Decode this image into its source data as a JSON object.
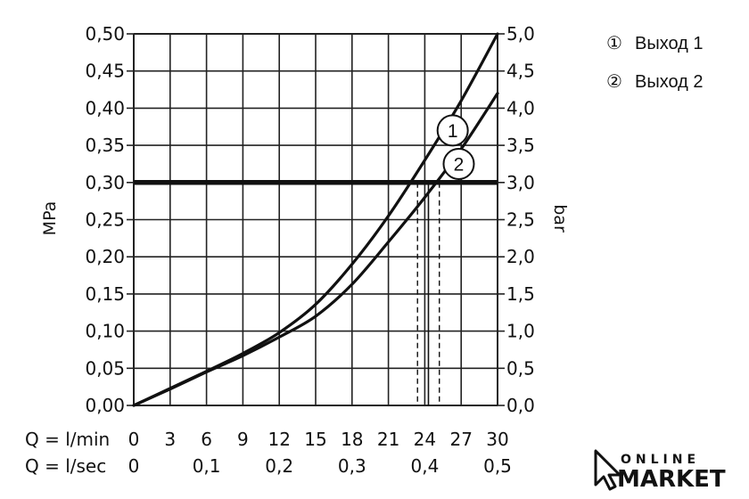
{
  "chart_data": {
    "type": "line",
    "xlabel_rows": [
      {
        "label": "Q = l/min",
        "ticks": [
          {
            "value": 0,
            "label": "0"
          },
          {
            "value": 3,
            "label": "3"
          },
          {
            "value": 6,
            "label": "6"
          },
          {
            "value": 9,
            "label": "9"
          },
          {
            "value": 12,
            "label": "12"
          },
          {
            "value": 15,
            "label": "15"
          },
          {
            "value": 18,
            "label": "18"
          },
          {
            "value": 21,
            "label": "21"
          },
          {
            "value": 24,
            "label": "24"
          },
          {
            "value": 27,
            "label": "27"
          },
          {
            "value": 30,
            "label": "30"
          }
        ]
      },
      {
        "label": "Q = l/sec",
        "ticks": [
          {
            "value": 0,
            "label": "0"
          },
          {
            "value": 6,
            "label": "0,1"
          },
          {
            "value": 12,
            "label": "0,2"
          },
          {
            "value": 18,
            "label": "0,3"
          },
          {
            "value": 24,
            "label": "0,4"
          },
          {
            "value": 30,
            "label": "0,5"
          }
        ]
      }
    ],
    "ylabel_left": "MPa",
    "ylabel_right": "bar",
    "xlim": [
      0,
      30
    ],
    "ylim": [
      0,
      0.5
    ],
    "grid": true,
    "y_ticks_left": [
      "0,00",
      "0,05",
      "0,10",
      "0,15",
      "0,20",
      "0,25",
      "0,30",
      "0,35",
      "0,40",
      "0,45",
      "0,50"
    ],
    "y_ticks_right": [
      "0,0",
      "0,5",
      "1,0",
      "1,5",
      "2,0",
      "2,5",
      "3,0",
      "3,5",
      "4,0",
      "4,5",
      "5,0"
    ],
    "reference_line": {
      "y": 0.3
    },
    "series": [
      {
        "marker_label": "1",
        "x": [
          0,
          3,
          6,
          9,
          12,
          15,
          18,
          21,
          24,
          27,
          30
        ],
        "y": [
          0,
          0.023,
          0.046,
          0.07,
          0.098,
          0.136,
          0.19,
          0.255,
          0.33,
          0.41,
          0.5
        ]
      },
      {
        "marker_label": "2",
        "x": [
          0,
          3,
          6,
          9,
          12,
          15,
          18,
          21,
          24,
          27,
          30
        ],
        "y": [
          0,
          0.022,
          0.045,
          0.067,
          0.092,
          0.12,
          0.163,
          0.22,
          0.28,
          0.345,
          0.42
        ]
      }
    ],
    "intersections": [
      {
        "marker_label": "1",
        "x": 23.4
      },
      {
        "marker_label": "2",
        "x": 25.2
      }
    ],
    "intersection_midline_x": 24.3,
    "marker_positions": [
      {
        "label": "1",
        "x": 26.3,
        "y": 0.37
      },
      {
        "label": "2",
        "x": 26.8,
        "y": 0.325
      }
    ]
  },
  "legend": {
    "items": [
      {
        "symbol": "①",
        "text": "Выход 1"
      },
      {
        "symbol": "②",
        "text": "Выход 2"
      }
    ],
    "placement": "top-right"
  },
  "logo": {
    "line1": "ONLINE",
    "line2": "MARKET"
  }
}
